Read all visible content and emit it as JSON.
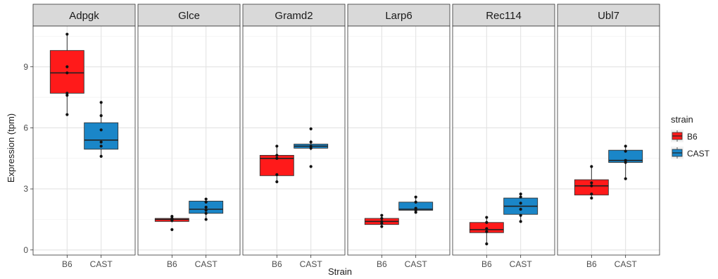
{
  "chart_data": {
    "type": "boxplot",
    "facets": [
      {
        "title": "Adpgk",
        "groups": [
          {
            "strain": "B6",
            "min": 6.65,
            "q1": 7.7,
            "median": 8.7,
            "q3": 9.8,
            "max": 10.6,
            "points": [
              10.6,
              9.0,
              8.7,
              7.7,
              7.6,
              6.65
            ]
          },
          {
            "strain": "CAST",
            "min": 4.6,
            "q1": 4.95,
            "median": 5.4,
            "q3": 6.25,
            "max": 7.25,
            "points": [
              7.25,
              6.6,
              5.9,
              5.3,
              5.1,
              4.6
            ]
          }
        ]
      },
      {
        "title": "Glce",
        "groups": [
          {
            "strain": "B6",
            "min": 1.35,
            "q1": 1.4,
            "median": 1.5,
            "q3": 1.55,
            "max": 1.65,
            "points": [
              1.65,
              1.55,
              1.5,
              1.45,
              1.0
            ]
          },
          {
            "strain": "CAST",
            "min": 1.5,
            "q1": 1.8,
            "median": 2.0,
            "q3": 2.4,
            "max": 2.5,
            "points": [
              2.5,
              2.35,
              2.1,
              1.95,
              1.8,
              1.5
            ]
          }
        ]
      },
      {
        "title": "Gramd2",
        "groups": [
          {
            "strain": "B6",
            "min": 3.35,
            "q1": 3.65,
            "median": 4.5,
            "q3": 4.65,
            "max": 5.1,
            "points": [
              5.1,
              4.65,
              4.5,
              3.7,
              3.35
            ]
          },
          {
            "strain": "CAST",
            "min": 4.9,
            "q1": 5.0,
            "median": 5.1,
            "q3": 5.2,
            "max": 5.4,
            "points": [
              5.95,
              5.3,
              5.1,
              5.0,
              4.1
            ]
          }
        ]
      },
      {
        "title": "Larp6",
        "groups": [
          {
            "strain": "B6",
            "min": 1.15,
            "q1": 1.25,
            "median": 1.4,
            "q3": 1.55,
            "max": 1.7,
            "points": [
              1.7,
              1.55,
              1.4,
              1.3,
              1.15
            ]
          },
          {
            "strain": "CAST",
            "min": 1.85,
            "q1": 1.95,
            "median": 2.0,
            "q3": 2.35,
            "max": 2.6,
            "points": [
              2.6,
              2.35,
              2.05,
              1.95,
              1.85
            ]
          }
        ]
      },
      {
        "title": "Rec114",
        "groups": [
          {
            "strain": "B6",
            "min": 0.3,
            "q1": 0.85,
            "median": 1.0,
            "q3": 1.35,
            "max": 1.6,
            "points": [
              1.6,
              1.35,
              1.05,
              0.9,
              0.3
            ]
          },
          {
            "strain": "CAST",
            "min": 1.4,
            "q1": 1.75,
            "median": 2.15,
            "q3": 2.55,
            "max": 2.75,
            "points": [
              2.75,
              2.6,
              2.3,
              2.0,
              1.7,
              1.4
            ]
          }
        ]
      },
      {
        "title": "Ubl7",
        "groups": [
          {
            "strain": "B6",
            "min": 2.55,
            "q1": 2.7,
            "median": 3.15,
            "q3": 3.45,
            "max": 4.1,
            "points": [
              4.1,
              3.3,
              3.15,
              2.75,
              2.55
            ]
          },
          {
            "strain": "CAST",
            "min": 3.5,
            "q1": 4.3,
            "median": 4.4,
            "q3": 4.9,
            "max": 5.1,
            "points": [
              5.1,
              4.85,
              4.4,
              4.3,
              3.5
            ]
          }
        ]
      }
    ],
    "categories": [
      "B6",
      "CAST"
    ],
    "xlabel": "Strain",
    "ylabel": "Expression (tpm)",
    "ylim": [
      -0.25,
      11.0
    ],
    "yticks": [
      0,
      3,
      6,
      9
    ],
    "grid": true,
    "legend": {
      "title": "strain",
      "placement": "right",
      "entries": [
        {
          "label": "B6",
          "color": "#ff1a1a"
        },
        {
          "label": "CAST",
          "color": "#1a86c8"
        }
      ]
    },
    "colors": {
      "B6": "#ff1a1a",
      "CAST": "#1a86c8"
    }
  }
}
